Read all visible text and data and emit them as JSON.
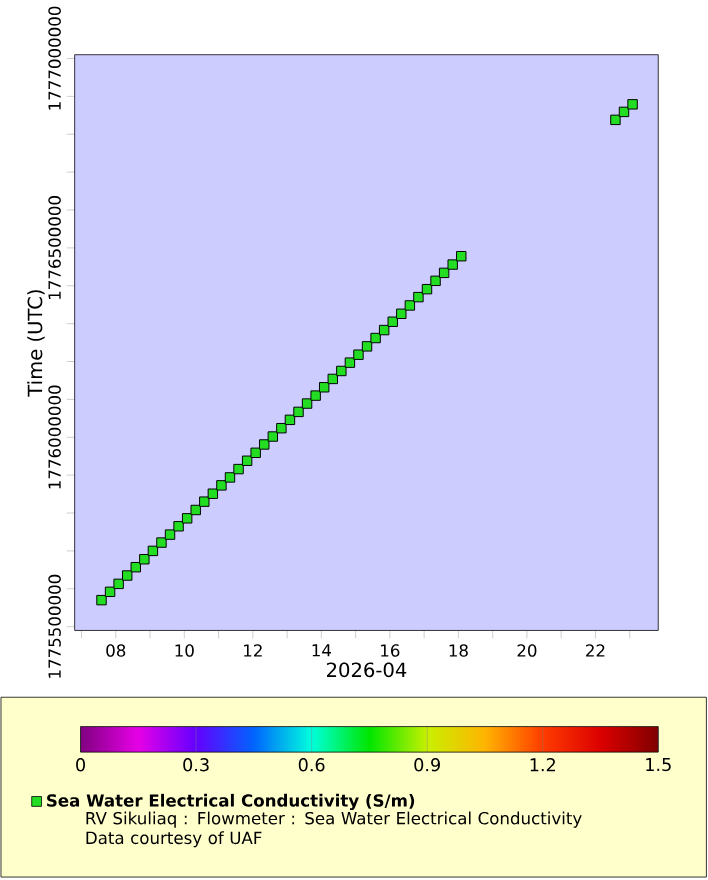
{
  "chart_data": {
    "type": "scatter",
    "xlabel": "2026-04",
    "ylabel": "Time (UTC)",
    "x": [
      "2026-04-07T14:00",
      "2026-04-07T20:00",
      "2026-04-08T02:00",
      "2026-04-08T08:00",
      "2026-04-08T14:00",
      "2026-04-08T20:00",
      "2026-04-09T02:00",
      "2026-04-09T08:00",
      "2026-04-09T14:00",
      "2026-04-09T20:00",
      "2026-04-10T02:00",
      "2026-04-10T08:00",
      "2026-04-10T14:00",
      "2026-04-10T20:00",
      "2026-04-11T02:00",
      "2026-04-11T08:00",
      "2026-04-11T14:00",
      "2026-04-11T20:00",
      "2026-04-12T02:00",
      "2026-04-12T08:00",
      "2026-04-12T14:00",
      "2026-04-12T20:00",
      "2026-04-13T02:00",
      "2026-04-13T08:00",
      "2026-04-13T14:00",
      "2026-04-13T20:00",
      "2026-04-14T02:00",
      "2026-04-14T08:00",
      "2026-04-14T14:00",
      "2026-04-14T20:00",
      "2026-04-15T02:00",
      "2026-04-15T08:00",
      "2026-04-15T14:00",
      "2026-04-15T20:00",
      "2026-04-16T02:00",
      "2026-04-16T08:00",
      "2026-04-16T14:00",
      "2026-04-16T20:00",
      "2026-04-17T02:00",
      "2026-04-17T08:00",
      "2026-04-17T14:00",
      "2026-04-17T20:00",
      "2026-04-18T02:00",
      "2026-04-22T14:00",
      "2026-04-22T20:00",
      "2026-04-23T02:00"
    ],
    "series": [
      {
        "name": "Sea Water Electrical Conductivity (S/m)",
        "color": "#22dd22",
        "values": [
          1775570000,
          1775592000,
          1775613000,
          1775635000,
          1775657000,
          1775678000,
          1775700000,
          1775722000,
          1775743000,
          1775765000,
          1775786000,
          1775808000,
          1775830000,
          1775851000,
          1775873000,
          1775894000,
          1775916000,
          1775938000,
          1775959000,
          1775981000,
          1776002000,
          1776024000,
          1776046000,
          1776067000,
          1776089000,
          1776110000,
          1776132000,
          1776154000,
          1776175000,
          1776197000,
          1776218000,
          1776240000,
          1776262000,
          1776283000,
          1776305000,
          1776326000,
          1776348000,
          1776370000,
          1776391000,
          1776413000,
          1776434000,
          1776456000,
          1776478000,
          1776838000,
          1776859000,
          1776879000
        ]
      }
    ],
    "marker": "square",
    "legend": "bottom",
    "xlim": [
      "2026-04-06T19:12",
      "2026-04-23T20:00"
    ],
    "xticks": [
      {
        "value": "2026-04-07",
        "label": null
      },
      {
        "value": "2026-04-08",
        "label": "08"
      },
      {
        "value": "2026-04-09",
        "label": null
      },
      {
        "value": "2026-04-10",
        "label": "10"
      },
      {
        "value": "2026-04-11",
        "label": null
      },
      {
        "value": "2026-04-12",
        "label": "12"
      },
      {
        "value": "2026-04-13",
        "label": null
      },
      {
        "value": "2026-04-14",
        "label": "14"
      },
      {
        "value": "2026-04-15",
        "label": null
      },
      {
        "value": "2026-04-16",
        "label": "16"
      },
      {
        "value": "2026-04-17",
        "label": null
      },
      {
        "value": "2026-04-18",
        "label": "18"
      },
      {
        "value": "2026-04-19",
        "label": null
      },
      {
        "value": "2026-04-20",
        "label": "20"
      },
      {
        "value": "2026-04-21",
        "label": null
      },
      {
        "value": "2026-04-22",
        "label": "22"
      },
      {
        "value": "2026-04-23",
        "label": null
      }
    ],
    "ylim": [
      1775490000,
      1777010000
    ],
    "yticks": [
      1775500000,
      {
        "value": 1775600000,
        "label": null
      },
      {
        "value": 1775700000,
        "label": null
      },
      {
        "value": 1775800000,
        "label": null
      },
      {
        "value": 1775900000,
        "label": null
      },
      1776000000,
      {
        "value": 1776100000,
        "label": null
      },
      {
        "value": 1776200000,
        "label": null
      },
      {
        "value": 1776300000,
        "label": null
      },
      {
        "value": 1776400000,
        "label": null
      },
      1776500000,
      {
        "value": 1776600000,
        "label": null
      },
      {
        "value": 1776700000,
        "label": null
      },
      {
        "value": 1776800000,
        "label": null
      },
      {
        "value": 1776900000,
        "label": null
      },
      1777000000
    ],
    "clim": [
      0,
      1.5
    ],
    "cticks": [
      0,
      0.3,
      0.6,
      0.9,
      1.2,
      1.5
    ],
    "annotations": [
      "RV Sikuliaq : Flowmeter : Sea Water Electrical Conductivity",
      "Data courtesy of UAF"
    ]
  }
}
